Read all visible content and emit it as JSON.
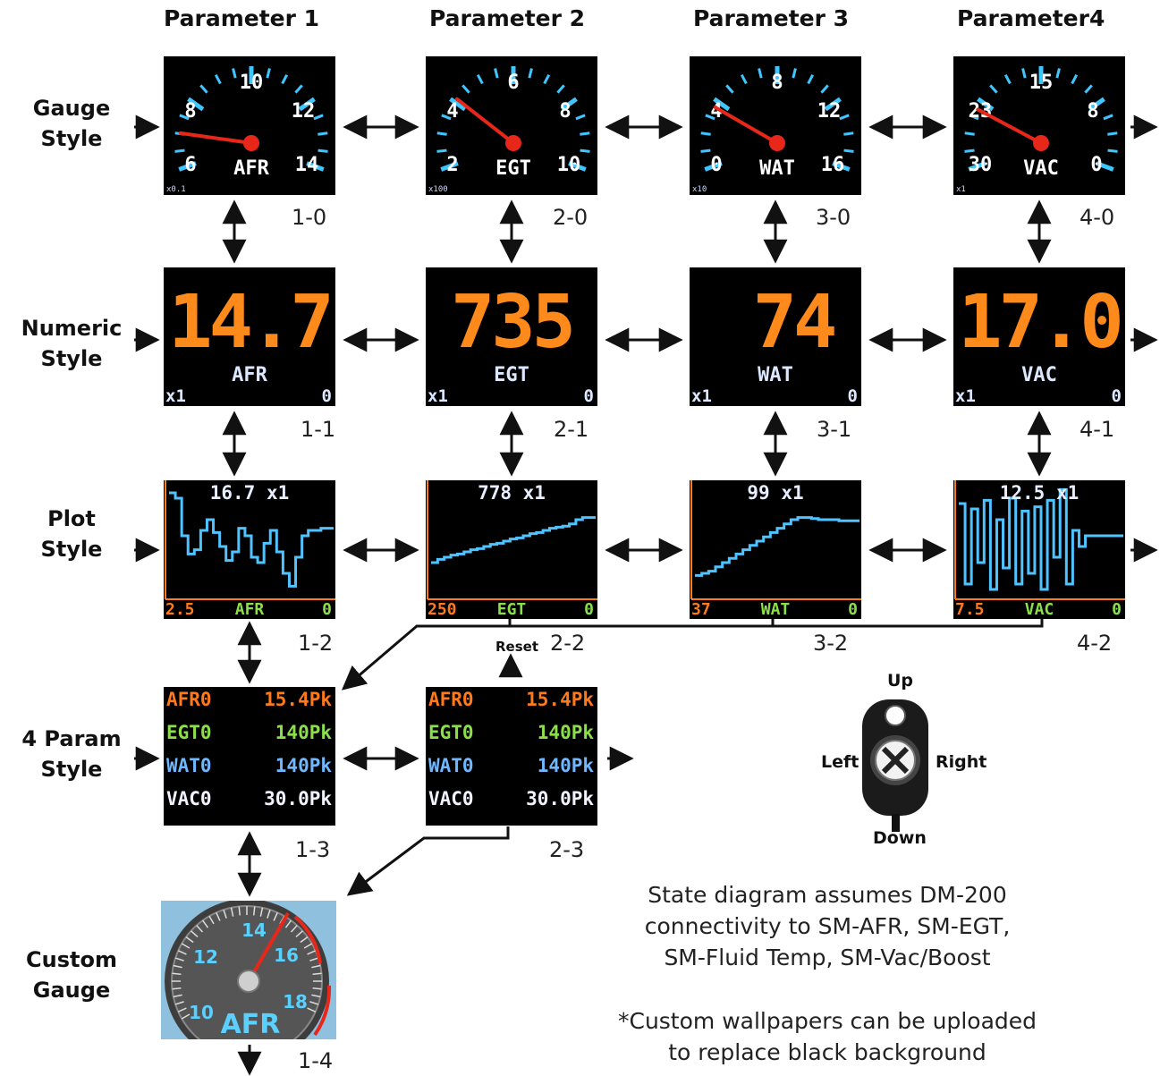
{
  "headers": [
    "Parameter 1",
    "Parameter 2",
    "Parameter 3",
    "Parameter4"
  ],
  "row_labels": {
    "gauge": [
      "Gauge",
      "Style"
    ],
    "numeric": [
      "Numeric",
      "Style"
    ],
    "plot": [
      "Plot",
      "Style"
    ],
    "four_param": [
      "4 Param",
      "Style"
    ],
    "custom": [
      "Custom",
      "Gauge"
    ]
  },
  "gauges": [
    {
      "ticks": [
        "6",
        "8",
        "10",
        "12",
        "14"
      ],
      "name": "AFR",
      "mult": "x0.1",
      "code": "1-0",
      "needle_angle": -8
    },
    {
      "ticks": [
        "2",
        "4",
        "6",
        "8",
        "10"
      ],
      "name": "EGT",
      "mult": "x100",
      "code": "2-0",
      "needle_angle": -38
    },
    {
      "ticks": [
        "0",
        "4",
        "8",
        "12",
        "16"
      ],
      "name": "WAT",
      "mult": "x10",
      "code": "3-0",
      "needle_angle": -30
    },
    {
      "ticks": [
        "30",
        "23",
        "15",
        "8",
        "0"
      ],
      "name": "VAC",
      "mult": "x1",
      "code": "4-0",
      "needle_angle": -28
    }
  ],
  "numerics": [
    {
      "value": "14.7",
      "name": "AFR",
      "mult": "x1",
      "zero": "0",
      "code": "1-1"
    },
    {
      "value": "735",
      "name": "EGT",
      "mult": "x1",
      "zero": "0",
      "code": "2-1"
    },
    {
      "value": "74",
      "name": "WAT",
      "mult": "x1",
      "zero": "0",
      "code": "3-1"
    },
    {
      "value": "17.0",
      "name": "VAC",
      "mult": "x1",
      "zero": "0",
      "code": "4-1"
    }
  ],
  "plots": [
    {
      "title": "16.7 x1",
      "min": "2.5",
      "name": "AFR",
      "zero": "0",
      "code": "1-2",
      "trace": [
        0.95,
        0.9,
        0.55,
        0.38,
        0.42,
        0.6,
        0.7,
        0.58,
        0.45,
        0.32,
        0.4,
        0.62,
        0.55,
        0.35,
        0.3,
        0.48,
        0.6,
        0.4,
        0.2,
        0.08,
        0.35,
        0.55,
        0.6,
        0.6,
        0.62,
        0.62,
        0.62
      ]
    },
    {
      "title": "778 x1",
      "min": "250",
      "name": "EGT",
      "zero": "0",
      "code": "2-2",
      "trace": [
        0.3,
        0.33,
        0.35,
        0.37,
        0.38,
        0.4,
        0.42,
        0.43,
        0.45,
        0.47,
        0.48,
        0.5,
        0.52,
        0.53,
        0.55,
        0.57,
        0.58,
        0.6,
        0.62,
        0.63,
        0.64,
        0.66,
        0.7,
        0.72,
        0.72,
        0.72
      ]
    },
    {
      "title": "99 x1",
      "min": "37",
      "name": "WAT",
      "zero": "0",
      "code": "3-2",
      "trace": [
        0.18,
        0.2,
        0.22,
        0.26,
        0.3,
        0.34,
        0.38,
        0.42,
        0.46,
        0.5,
        0.54,
        0.58,
        0.62,
        0.66,
        0.7,
        0.72,
        0.72,
        0.71,
        0.7,
        0.7,
        0.7,
        0.69,
        0.69,
        0.69,
        0.69
      ]
    },
    {
      "title": "12.5 x1",
      "min": "7.5",
      "name": "VAC",
      "zero": "0",
      "code": "4-2",
      "trace": [
        0.85,
        0.1,
        0.8,
        0.3,
        0.88,
        0.05,
        0.7,
        0.25,
        0.9,
        0.1,
        0.78,
        0.2,
        0.82,
        0.05,
        0.88,
        0.35,
        0.98,
        0.1,
        0.6,
        0.45,
        0.55,
        0.55,
        0.55,
        0.55,
        0.55,
        0.55,
        0.55
      ]
    }
  ],
  "four_param": [
    {
      "code": "1-3",
      "rows": [
        {
          "label": "AFR0",
          "value": "15.4Pk",
          "color": "#ff7a1a"
        },
        {
          "label": "EGT0",
          "value": "140Pk",
          "color": "#8be04a"
        },
        {
          "label": "WAT0",
          "value": "140Pk",
          "color": "#6fb8ff"
        },
        {
          "label": "VAC0",
          "value": "30.0Pk",
          "color": "#f2f2ff"
        }
      ]
    },
    {
      "code": "2-3",
      "rows": [
        {
          "label": "AFR0",
          "value": "15.4Pk",
          "color": "#ff7a1a"
        },
        {
          "label": "EGT0",
          "value": "140Pk",
          "color": "#8be04a"
        },
        {
          "label": "WAT0",
          "value": "140Pk",
          "color": "#6fb8ff"
        },
        {
          "label": "VAC0",
          "value": "30.0Pk",
          "color": "#f2f2ff"
        }
      ]
    }
  ],
  "custom_gauge": {
    "ticks": [
      "10",
      "12",
      "14",
      "16",
      "18"
    ],
    "name": "AFR",
    "code": "1-4"
  },
  "reset_label": "Reset",
  "keyfob": {
    "up": "Up",
    "down": "Down",
    "left": "Left",
    "right": "Right"
  },
  "notes": [
    [
      "State diagram assumes DM-200",
      "connectivity to SM-AFR, SM-EGT,",
      "SM-Fluid Temp, SM-Vac/Boost"
    ],
    [
      "*Custom wallpapers can be uploaded",
      "to replace black background"
    ]
  ],
  "colors": {
    "screen_bg": "#000000",
    "numeric": "#ff8a1c",
    "gauge_ticks": "#3fc6ff",
    "needle": "#e8271b",
    "plot_trace": "#4fc3ff",
    "plot_axis": "#ff7a1a",
    "plot_footer": "#8be04a"
  }
}
